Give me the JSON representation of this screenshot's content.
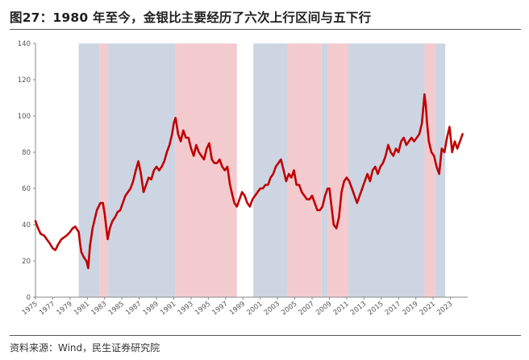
{
  "title": "图27：1980 年至今，金银比主要经历了六次上行区间与五下行",
  "source": "资料来源：Wind，民生证券研究院",
  "chart_data": {
    "type": "line",
    "title": "图27：1980 年至今，金银比主要经历了六次上行区间与五下行",
    "xlabel": "",
    "ylabel": "",
    "xlim": [
      1975,
      2025
    ],
    "ylim": [
      0,
      140
    ],
    "y_ticks": [
      0,
      20,
      40,
      60,
      80,
      100,
      120,
      140
    ],
    "x_tick_labels": [
      "1975",
      "1977",
      "1979",
      "1981",
      "1983",
      "1985",
      "1987",
      "1989",
      "1991",
      "1993",
      "1995",
      "1997",
      "1999",
      "2001",
      "2003",
      "2005",
      "2007",
      "2009",
      "2011",
      "2013",
      "2015",
      "2017",
      "2019",
      "2021",
      "2023"
    ],
    "grid": false,
    "line_color": "#c00000",
    "shaded_regions": [
      {
        "start": 1980.0,
        "end": 1982.4,
        "trend": "down",
        "color": "#cdd5e2"
      },
      {
        "start": 1982.4,
        "end": 1983.4,
        "trend": "up",
        "color": "#f3cbcf"
      },
      {
        "start": 1983.4,
        "end": 1991.2,
        "trend": "down",
        "color": "#cdd5e2"
      },
      {
        "start": 1991.2,
        "end": 1998.3,
        "trend": "up",
        "color": "#f3cbcf"
      },
      {
        "start": 2000.2,
        "end": 2004.1,
        "trend": "down",
        "color": "#cdd5e2"
      },
      {
        "start": 2004.1,
        "end": 2008.1,
        "trend": "up",
        "color": "#f3cbcf"
      },
      {
        "start": 2008.1,
        "end": 2008.8,
        "trend": "down",
        "color": "#cdd5e2"
      },
      {
        "start": 2008.8,
        "end": 2011.2,
        "trend": "up",
        "color": "#f3cbcf"
      },
      {
        "start": 2011.2,
        "end": 2020.0,
        "trend": "down",
        "color": "#cdd5e2"
      },
      {
        "start": 2020.0,
        "end": 2021.2,
        "trend": "up",
        "color": "#f3cbcf"
      },
      {
        "start": 2021.2,
        "end": 2022.4,
        "trend": "down",
        "color": "#cdd5e2"
      }
    ],
    "series": [
      {
        "name": "",
        "x": [
          1975.0,
          1975.3,
          1975.6,
          1976.0,
          1976.3,
          1976.6,
          1977.0,
          1977.3,
          1977.6,
          1978.0,
          1978.3,
          1978.6,
          1979.0,
          1979.3,
          1979.6,
          1980.0,
          1980.15,
          1980.3,
          1980.6,
          1980.9,
          1981.1,
          1981.3,
          1981.6,
          1981.9,
          1982.1,
          1982.3,
          1982.5,
          1982.8,
          1983.0,
          1983.2,
          1983.35,
          1983.6,
          1983.9,
          1984.2,
          1984.5,
          1984.8,
          1985.1,
          1985.4,
          1985.7,
          1986.0,
          1986.3,
          1986.6,
          1986.9,
          1987.2,
          1987.5,
          1987.8,
          1988.1,
          1988.4,
          1988.7,
          1989.0,
          1989.3,
          1989.6,
          1989.9,
          1990.2,
          1990.5,
          1990.8,
          1991.0,
          1991.2,
          1991.5,
          1991.8,
          1992.1,
          1992.4,
          1992.7,
          1993.0,
          1993.3,
          1993.6,
          1993.9,
          1994.2,
          1994.5,
          1994.8,
          1995.1,
          1995.4,
          1995.7,
          1996.0,
          1996.3,
          1996.6,
          1996.9,
          1997.2,
          1997.5,
          1997.8,
          1998.0,
          1998.3,
          1998.6,
          1998.9,
          1999.2,
          1999.5,
          1999.8,
          2000.1,
          2000.4,
          2000.7,
          2001.0,
          2001.3,
          2001.6,
          2001.9,
          2002.2,
          2002.5,
          2002.8,
          2003.1,
          2003.4,
          2003.7,
          2004.0,
          2004.3,
          2004.6,
          2004.9,
          2005.2,
          2005.5,
          2005.8,
          2006.1,
          2006.4,
          2006.7,
          2007.0,
          2007.3,
          2007.6,
          2007.9,
          2008.2,
          2008.5,
          2008.8,
          2009.0,
          2009.2,
          2009.5,
          2009.8,
          2010.1,
          2010.4,
          2010.7,
          2011.0,
          2011.3,
          2011.6,
          2011.9,
          2012.2,
          2012.5,
          2012.8,
          2013.1,
          2013.4,
          2013.7,
          2014.0,
          2014.3,
          2014.6,
          2014.9,
          2015.2,
          2015.5,
          2015.8,
          2016.1,
          2016.4,
          2016.7,
          2017.0,
          2017.3,
          2017.6,
          2017.9,
          2018.2,
          2018.5,
          2018.8,
          2019.1,
          2019.4,
          2019.7,
          2020.0,
          2020.15,
          2020.3,
          2020.5,
          2020.8,
          2021.1,
          2021.4,
          2021.7,
          2022.0,
          2022.3,
          2022.6,
          2022.9,
          2023.2,
          2023.5,
          2023.8,
          2024.1,
          2024.4
        ],
        "y": [
          42,
          38,
          35,
          34,
          32,
          30,
          27,
          26,
          29,
          32,
          33,
          34,
          36,
          38,
          39,
          36,
          30,
          25,
          22,
          20,
          16,
          28,
          38,
          44,
          48,
          50,
          52,
          52,
          46,
          38,
          32,
          38,
          42,
          44,
          47,
          48,
          52,
          56,
          58,
          60,
          64,
          70,
          75,
          68,
          58,
          62,
          66,
          65,
          70,
          72,
          70,
          72,
          75,
          80,
          84,
          90,
          96,
          99,
          90,
          86,
          92,
          88,
          88,
          82,
          78,
          84,
          80,
          78,
          76,
          82,
          85,
          76,
          74,
          74,
          76,
          72,
          70,
          72,
          62,
          56,
          52,
          50,
          54,
          58,
          56,
          52,
          50,
          54,
          56,
          58,
          60,
          60,
          62,
          62,
          66,
          68,
          72,
          74,
          76,
          70,
          64,
          68,
          66,
          70,
          62,
          62,
          58,
          56,
          54,
          54,
          56,
          52,
          48,
          48,
          50,
          56,
          60,
          60,
          52,
          40,
          38,
          44,
          58,
          64,
          66,
          64,
          60,
          56,
          52,
          56,
          60,
          64,
          68,
          64,
          70,
          72,
          68,
          72,
          74,
          78,
          84,
          80,
          78,
          82,
          80,
          86,
          88,
          84,
          86,
          88,
          86,
          88,
          90,
          96,
          112,
          106,
          96,
          86,
          80,
          78,
          72,
          68,
          82,
          80,
          88,
          94,
          80,
          86,
          82,
          86,
          90
        ]
      }
    ]
  }
}
